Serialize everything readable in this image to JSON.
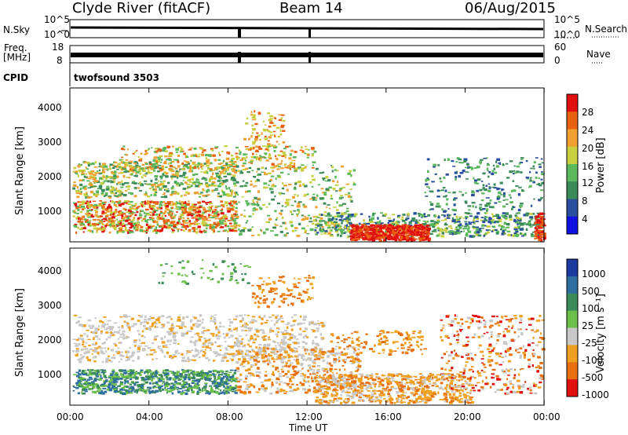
{
  "header": {
    "site": "Clyde River (fitACF)",
    "beam": "Beam 14",
    "date": "06/Aug/2015"
  },
  "strips": {
    "nsky_label": "N.Sky",
    "nsky_ticks": [
      "10^5",
      "10^0"
    ],
    "nsearch_label": "N.Search",
    "nsearch_ticks": [
      "10^5",
      "10^0"
    ],
    "freq_label": "Freq.",
    "freq_unit": "[MHz]",
    "freq_ticks": [
      "18",
      "8"
    ],
    "nave_label": "Nave",
    "nave_ticks": [
      "60",
      "0"
    ],
    "cpid_label": "CPID",
    "cpid_value": "twofsound 3503"
  },
  "chart_data": [
    {
      "type": "heatmap",
      "name": "power",
      "ylabel": "Slant Range [km]",
      "yticks": [
        "1000",
        "2000",
        "3000",
        "4000"
      ],
      "ylim": [
        0,
        4500
      ],
      "colorbar_label": "Power [dB]",
      "colorbar_ticks": [
        "28",
        "24",
        "20",
        "16",
        "12",
        "8",
        "4"
      ],
      "colors": [
        "#1010e0",
        "#2a4fa0",
        "#3a8a5a",
        "#5cb85c",
        "#c8d040",
        "#f0a030",
        "#e86010",
        "#e01010"
      ]
    },
    {
      "type": "heatmap",
      "name": "velocity",
      "ylabel": "Slant Range [km]",
      "yticks": [
        "1000",
        "2000",
        "3000",
        "4000"
      ],
      "ylim": [
        0,
        4500
      ],
      "colorbar_label": "Velocity [m s⁻¹]",
      "colorbar_ticks": [
        "1000",
        "500",
        "100",
        "25",
        "-25",
        "-100",
        "-500",
        "-1000"
      ],
      "colors": [
        "#1a3aa0",
        "#2f6fa0",
        "#3a8a5a",
        "#6cc04a",
        "#c8c8c8",
        "#f0a020",
        "#e87010",
        "#e01010"
      ]
    }
  ],
  "xaxis": {
    "label": "Time UT",
    "ticks": [
      "00:00",
      "04:00",
      "08:00",
      "12:00",
      "16:00",
      "20:00",
      "00:00"
    ]
  }
}
